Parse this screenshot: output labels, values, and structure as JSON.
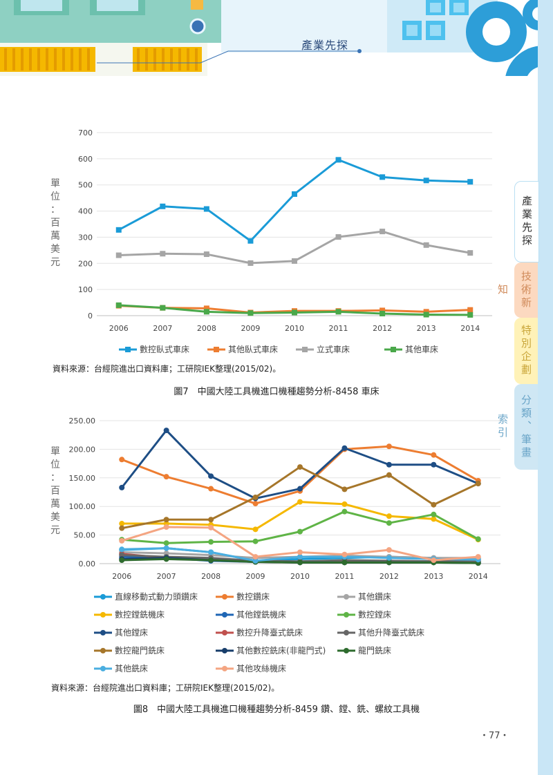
{
  "header": {
    "section": "產業先探"
  },
  "side_tabs": [
    "產業先探",
    "技術新知",
    "特別企劃",
    "分類、筆畫索引"
  ],
  "figure7": {
    "caption": "圖7　中國大陸工具機進口機種趨勢分析-8458 車床",
    "source": "資料來源：台經院進出口資料庫；工研院IEK整理(2015/02)。"
  },
  "figure8": {
    "caption": "圖8　中國大陸工具機進口機種趨勢分析-8459 鑽、鏜、銑、螺紋工具機",
    "source": "資料來源：台經院進出口資料庫；工研院IEK整理(2015/02)。"
  },
  "page_number": "・77・",
  "chart_data": [
    {
      "type": "line",
      "ylabel": "單位：百萬美元",
      "ylim": [
        0,
        700
      ],
      "yticks": [
        "0",
        "100",
        "200",
        "300",
        "400",
        "500",
        "600",
        "700"
      ],
      "x": [
        "2006",
        "2007",
        "2008",
        "2009",
        "2010",
        "2011",
        "2012",
        "2013",
        "2014"
      ],
      "grid": true,
      "legend": "bottom",
      "series": [
        {
          "name": "數控臥式車床",
          "color": "#1a9bd7",
          "values": [
            328,
            418,
            408,
            286,
            465,
            596,
            530,
            517,
            512
          ]
        },
        {
          "name": "其他臥式車床",
          "color": "#ed7d31",
          "values": [
            38,
            30,
            28,
            12,
            18,
            18,
            20,
            15,
            22
          ]
        },
        {
          "name": "立式車床",
          "color": "#a5a5a5",
          "values": [
            231,
            237,
            235,
            201,
            209,
            301,
            322,
            270,
            240
          ]
        },
        {
          "name": "其他車床",
          "color": "#4aa84a",
          "values": [
            40,
            30,
            15,
            10,
            12,
            15,
            8,
            4,
            3
          ]
        }
      ]
    },
    {
      "type": "line",
      "ylabel": "單位：百萬美元",
      "ylim": [
        0,
        250
      ],
      "yticks": [
        "0.00",
        "50.00",
        "100.00",
        "150.00",
        "200.00",
        "250.00"
      ],
      "x": [
        "2006",
        "2007",
        "2008",
        "2009",
        "2010",
        "2011",
        "2012",
        "2013",
        "2014"
      ],
      "grid": true,
      "legend": "bottom",
      "series": [
        {
          "name": "直線移動式動力頭鑽床",
          "color": "#1a9bd7",
          "values": [
            24,
            27,
            20,
            5,
            8,
            10,
            12,
            10,
            8
          ]
        },
        {
          "name": "數控鑽床",
          "color": "#ed7d31",
          "values": [
            182,
            152,
            131,
            105,
            127,
            200,
            205,
            190,
            145
          ]
        },
        {
          "name": "其他鑽床",
          "color": "#a5a5a5",
          "values": [
            20,
            18,
            15,
            10,
            12,
            14,
            12,
            10,
            10
          ]
        },
        {
          "name": "數控鏜銑機床",
          "color": "#f5b800",
          "values": [
            70,
            70,
            68,
            60,
            108,
            104,
            83,
            78,
            42
          ]
        },
        {
          "name": "其他鏜銑機床",
          "color": "#1f66b5",
          "values": [
            12,
            10,
            5,
            3,
            3,
            3,
            3,
            3,
            2
          ]
        },
        {
          "name": "數控鏜床",
          "color": "#5fb446",
          "values": [
            42,
            36,
            38,
            39,
            56,
            91,
            71,
            86,
            43
          ]
        },
        {
          "name": "其他鏜床",
          "color": "#1e4e85",
          "values": [
            133,
            233,
            153,
            114,
            131,
            202,
            173,
            173,
            140
          ]
        },
        {
          "name": "數控升降臺式銑床",
          "color": "#c0504d",
          "values": [
            17,
            10,
            8,
            4,
            3,
            5,
            5,
            4,
            5
          ]
        },
        {
          "name": "其他升降臺式銑床",
          "color": "#666666",
          "values": [
            15,
            12,
            10,
            5,
            4,
            6,
            5,
            4,
            4
          ]
        },
        {
          "name": "數控龍門銑床",
          "color": "#a6762a",
          "values": [
            62,
            77,
            77,
            116,
            169,
            130,
            155,
            103,
            140
          ]
        },
        {
          "name": "其他數控銑床(非龍門式)",
          "color": "#173d6a",
          "values": [
            8,
            10,
            6,
            3,
            2,
            2,
            2,
            2,
            1
          ]
        },
        {
          "name": "龍門銑床",
          "color": "#2e6b2e",
          "values": [
            6,
            8,
            6,
            3,
            2,
            2,
            2,
            2,
            1
          ]
        },
        {
          "name": "其他銑床",
          "color": "#4aaee0",
          "values": [
            25,
            27,
            20,
            5,
            12,
            12,
            10,
            8,
            7
          ]
        },
        {
          "name": "其他攻絲機床",
          "color": "#f4a582",
          "values": [
            40,
            64,
            63,
            12,
            20,
            16,
            24,
            6,
            12
          ]
        }
      ]
    }
  ]
}
